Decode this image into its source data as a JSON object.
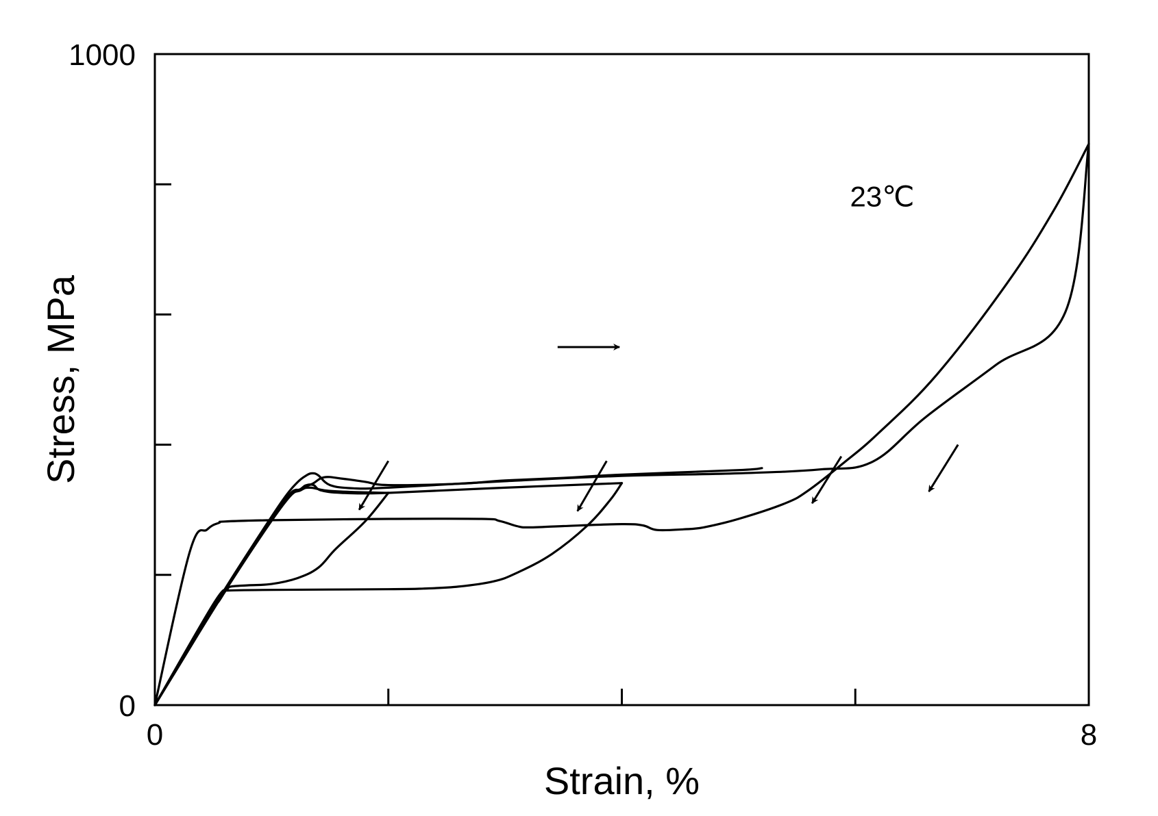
{
  "chart_data": {
    "type": "line",
    "title": "",
    "xlabel": "Strain, %",
    "ylabel": "Stress, MPa",
    "xlim": [
      0,
      8
    ],
    "ylim": [
      0,
      1000
    ],
    "x_ticks": [
      0,
      2,
      4,
      6,
      8
    ],
    "y_ticks": [
      0,
      200,
      400,
      600,
      800,
      1000
    ],
    "x_tick_labels": [
      {
        "value": 0,
        "label": "0"
      },
      {
        "value": 8,
        "label": "8"
      }
    ],
    "y_tick_labels": [
      {
        "value": 0,
        "label": "0"
      },
      {
        "value": 1000,
        "label": "1000"
      }
    ],
    "grid": false,
    "annotations": [
      {
        "text": "23℃",
        "x": 6.23,
        "y": 766
      }
    ],
    "series": [
      {
        "loading": [
          [
            0,
            0
          ],
          [
            0.3,
            88
          ],
          [
            0.6,
            178
          ],
          [
            0.9,
            262
          ],
          [
            1.1,
            316
          ],
          [
            1.22,
            342
          ],
          [
            1.3,
            353
          ],
          [
            1.35,
            356
          ],
          [
            1.4,
            353
          ],
          [
            1.5,
            338
          ],
          [
            1.7,
            333
          ],
          [
            2.0,
            334
          ],
          [
            3.0,
            344
          ],
          [
            4.0,
            352
          ],
          [
            5.0,
            356
          ],
          [
            5.7,
            362
          ],
          [
            6.15,
            374
          ],
          [
            6.6,
            442
          ],
          [
            7.2,
            522
          ],
          [
            7.8,
            604
          ],
          [
            8.0,
            862
          ]
        ],
        "unloading": [
          [
            8.0,
            862
          ],
          [
            7.7,
            760
          ],
          [
            7.3,
            648
          ],
          [
            6.7,
            508
          ],
          [
            6.2,
            418
          ],
          [
            5.9,
            372
          ],
          [
            5.6,
            330
          ],
          [
            5.4,
            310
          ],
          [
            5.0,
            286
          ],
          [
            4.7,
            273
          ],
          [
            4.53,
            270
          ],
          [
            4.3,
            269
          ],
          [
            4.18,
            276
          ],
          [
            4.0,
            278
          ],
          [
            3.5,
            275
          ],
          [
            3.2,
            273
          ],
          [
            3.1,
            275
          ],
          [
            2.95,
            283
          ],
          [
            2.8,
            286
          ],
          [
            2.0,
            286
          ],
          [
            1.0,
            284
          ],
          [
            0.6,
            282
          ],
          [
            0.55,
            280
          ],
          [
            0.45,
            270
          ],
          [
            0.3,
            236
          ],
          [
            0,
            0
          ]
        ]
      },
      {
        "loading": [
          [
            0,
            0
          ],
          [
            0.6,
            175
          ],
          [
            1.1,
            310
          ],
          [
            1.25,
            332
          ],
          [
            1.3,
            338
          ],
          [
            1.36,
            338
          ],
          [
            1.42,
            330
          ],
          [
            1.6,
            326
          ],
          [
            2.0,
            326
          ],
          [
            3.0,
            334
          ],
          [
            4.0,
            341
          ]
        ],
        "unloading": [
          [
            4.0,
            341
          ],
          [
            3.9,
            315
          ],
          [
            3.7,
            275
          ],
          [
            3.4,
            232
          ],
          [
            3.1,
            203
          ],
          [
            2.9,
            190
          ],
          [
            2.6,
            182
          ],
          [
            2.3,
            179
          ],
          [
            2.0,
            178
          ],
          [
            1.0,
            177
          ],
          [
            0.62,
            176
          ],
          [
            0.6,
            174
          ],
          [
            0.55,
            160
          ],
          [
            0.45,
            135
          ],
          [
            0,
            0
          ]
        ]
      },
      {
        "loading": [
          [
            0,
            0
          ],
          [
            0.6,
            175
          ],
          [
            1.1,
            308
          ],
          [
            1.25,
            330
          ],
          [
            1.33,
            334
          ],
          [
            1.45,
            330
          ],
          [
            1.6,
            328
          ],
          [
            2.0,
            326
          ]
        ],
        "unloading": [
          [
            2.0,
            326
          ],
          [
            1.8,
            282
          ],
          [
            1.55,
            240
          ],
          [
            1.4,
            211
          ],
          [
            1.22,
            195
          ],
          [
            1.0,
            186
          ],
          [
            0.8,
            184
          ],
          [
            0.65,
            182
          ],
          [
            0.62,
            178
          ],
          [
            0.5,
            155
          ],
          [
            0,
            0
          ]
        ]
      },
      {
        "loading": [
          [
            0,
            0
          ],
          [
            0.6,
            178
          ],
          [
            1.1,
            312
          ],
          [
            1.25,
            332
          ],
          [
            1.35,
            340
          ],
          [
            1.45,
            350
          ],
          [
            1.6,
            348
          ],
          [
            1.8,
            343
          ],
          [
            2.0,
            338
          ],
          [
            2.6,
            340
          ],
          [
            3.0,
            345
          ],
          [
            3.5,
            349
          ],
          [
            4.0,
            354
          ],
          [
            5.0,
            361
          ],
          [
            5.2,
            364
          ]
        ],
        "unloading": []
      }
    ],
    "arrows": [
      {
        "direction": "loading",
        "from": [
          3.45,
          550
        ],
        "to": [
          3.98,
          550
        ]
      },
      {
        "direction": "unloading",
        "from": [
          2.0,
          375
        ],
        "to": [
          1.75,
          300
        ]
      },
      {
        "direction": "unloading",
        "from": [
          3.87,
          375
        ],
        "to": [
          3.62,
          298
        ]
      },
      {
        "direction": "unloading",
        "from": [
          5.88,
          382
        ],
        "to": [
          5.63,
          310
        ]
      },
      {
        "direction": "unloading",
        "from": [
          6.88,
          400
        ],
        "to": [
          6.63,
          328
        ]
      }
    ]
  }
}
